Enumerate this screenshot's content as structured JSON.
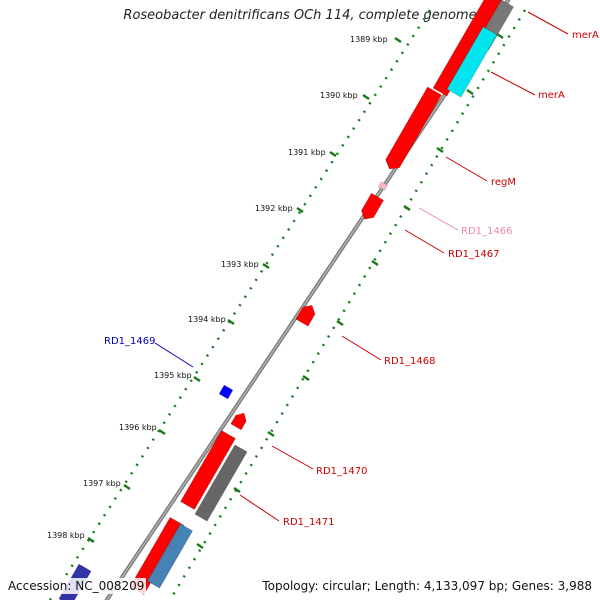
{
  "title": "Roseobacter denitrificans OCh 114, complete genome",
  "footer": {
    "accession": "Accession: NC_008209",
    "summary": "Topology: circular; Length: 4,133,097 bp; Genes: 3,988"
  },
  "colors": {
    "backbone": "#808080",
    "ticks": "#1a7a1a",
    "forward_gene": "#ff0000",
    "reverse_gene": "#ff0000",
    "highlight_cds": "#00e5ee",
    "gray_cds": "#666666",
    "steel_cds": "#4682b4",
    "blue_gene": "#0000ff",
    "pink_gene": "#ffb6c1"
  },
  "scale_labels": [
    "1389 kbp",
    "1390 kbp",
    "1391 kbp",
    "1392 kbp",
    "1393 kbp",
    "1394 kbp",
    "1395 kbp",
    "1396 kbp",
    "1397 kbp",
    "1398 kbp"
  ],
  "gene_labels": [
    {
      "text": "merA",
      "color": "#cc0000"
    },
    {
      "text": "merA",
      "color": "#cc0000"
    },
    {
      "text": "regM",
      "color": "#cc0000"
    },
    {
      "text": "RD1_1466",
      "color": "#e98aa5"
    },
    {
      "text": "RD1_1467",
      "color": "#cc0000"
    },
    {
      "text": "RD1_1468",
      "color": "#cc0000"
    },
    {
      "text": "RD1_1469",
      "color": "#0000aa"
    },
    {
      "text": "RD1_1470",
      "color": "#cc0000"
    },
    {
      "text": "RD1_1471",
      "color": "#cc0000"
    }
  ]
}
